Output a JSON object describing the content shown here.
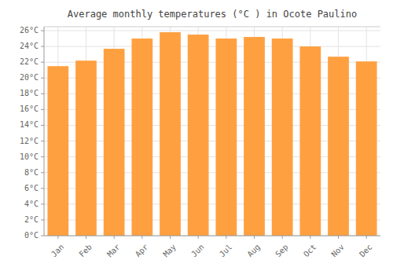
{
  "chart_data": {
    "type": "bar",
    "title": "Average monthly temperatures (°C ) in Ocote Paulino",
    "categories": [
      "Jan",
      "Feb",
      "Mar",
      "Apr",
      "May",
      "Jun",
      "Jul",
      "Aug",
      "Sep",
      "Oct",
      "Nov",
      "Dec"
    ],
    "values": [
      21.5,
      22.2,
      23.7,
      25.0,
      25.8,
      25.5,
      25.0,
      25.2,
      25.0,
      24.0,
      22.7,
      22.1
    ],
    "color": "#FFA040",
    "ylim": [
      0,
      26.5
    ],
    "yticks": [
      {
        "value": 0,
        "label": "0°C"
      },
      {
        "value": 2,
        "label": "2°C"
      },
      {
        "value": 4,
        "label": "4°C"
      },
      {
        "value": 6,
        "label": "6°C"
      },
      {
        "value": 8,
        "label": "8°C"
      },
      {
        "value": 10,
        "label": "10°C"
      },
      {
        "value": 12,
        "label": "12°C"
      },
      {
        "value": 14,
        "label": "14°C"
      },
      {
        "value": 16,
        "label": "16°C"
      },
      {
        "value": 18,
        "label": "18°C"
      },
      {
        "value": 20,
        "label": "20°C"
      },
      {
        "value": 22,
        "label": "22°C"
      },
      {
        "value": 24,
        "label": "24°C"
      },
      {
        "value": 26,
        "label": "26°C"
      }
    ],
    "grid": true
  }
}
